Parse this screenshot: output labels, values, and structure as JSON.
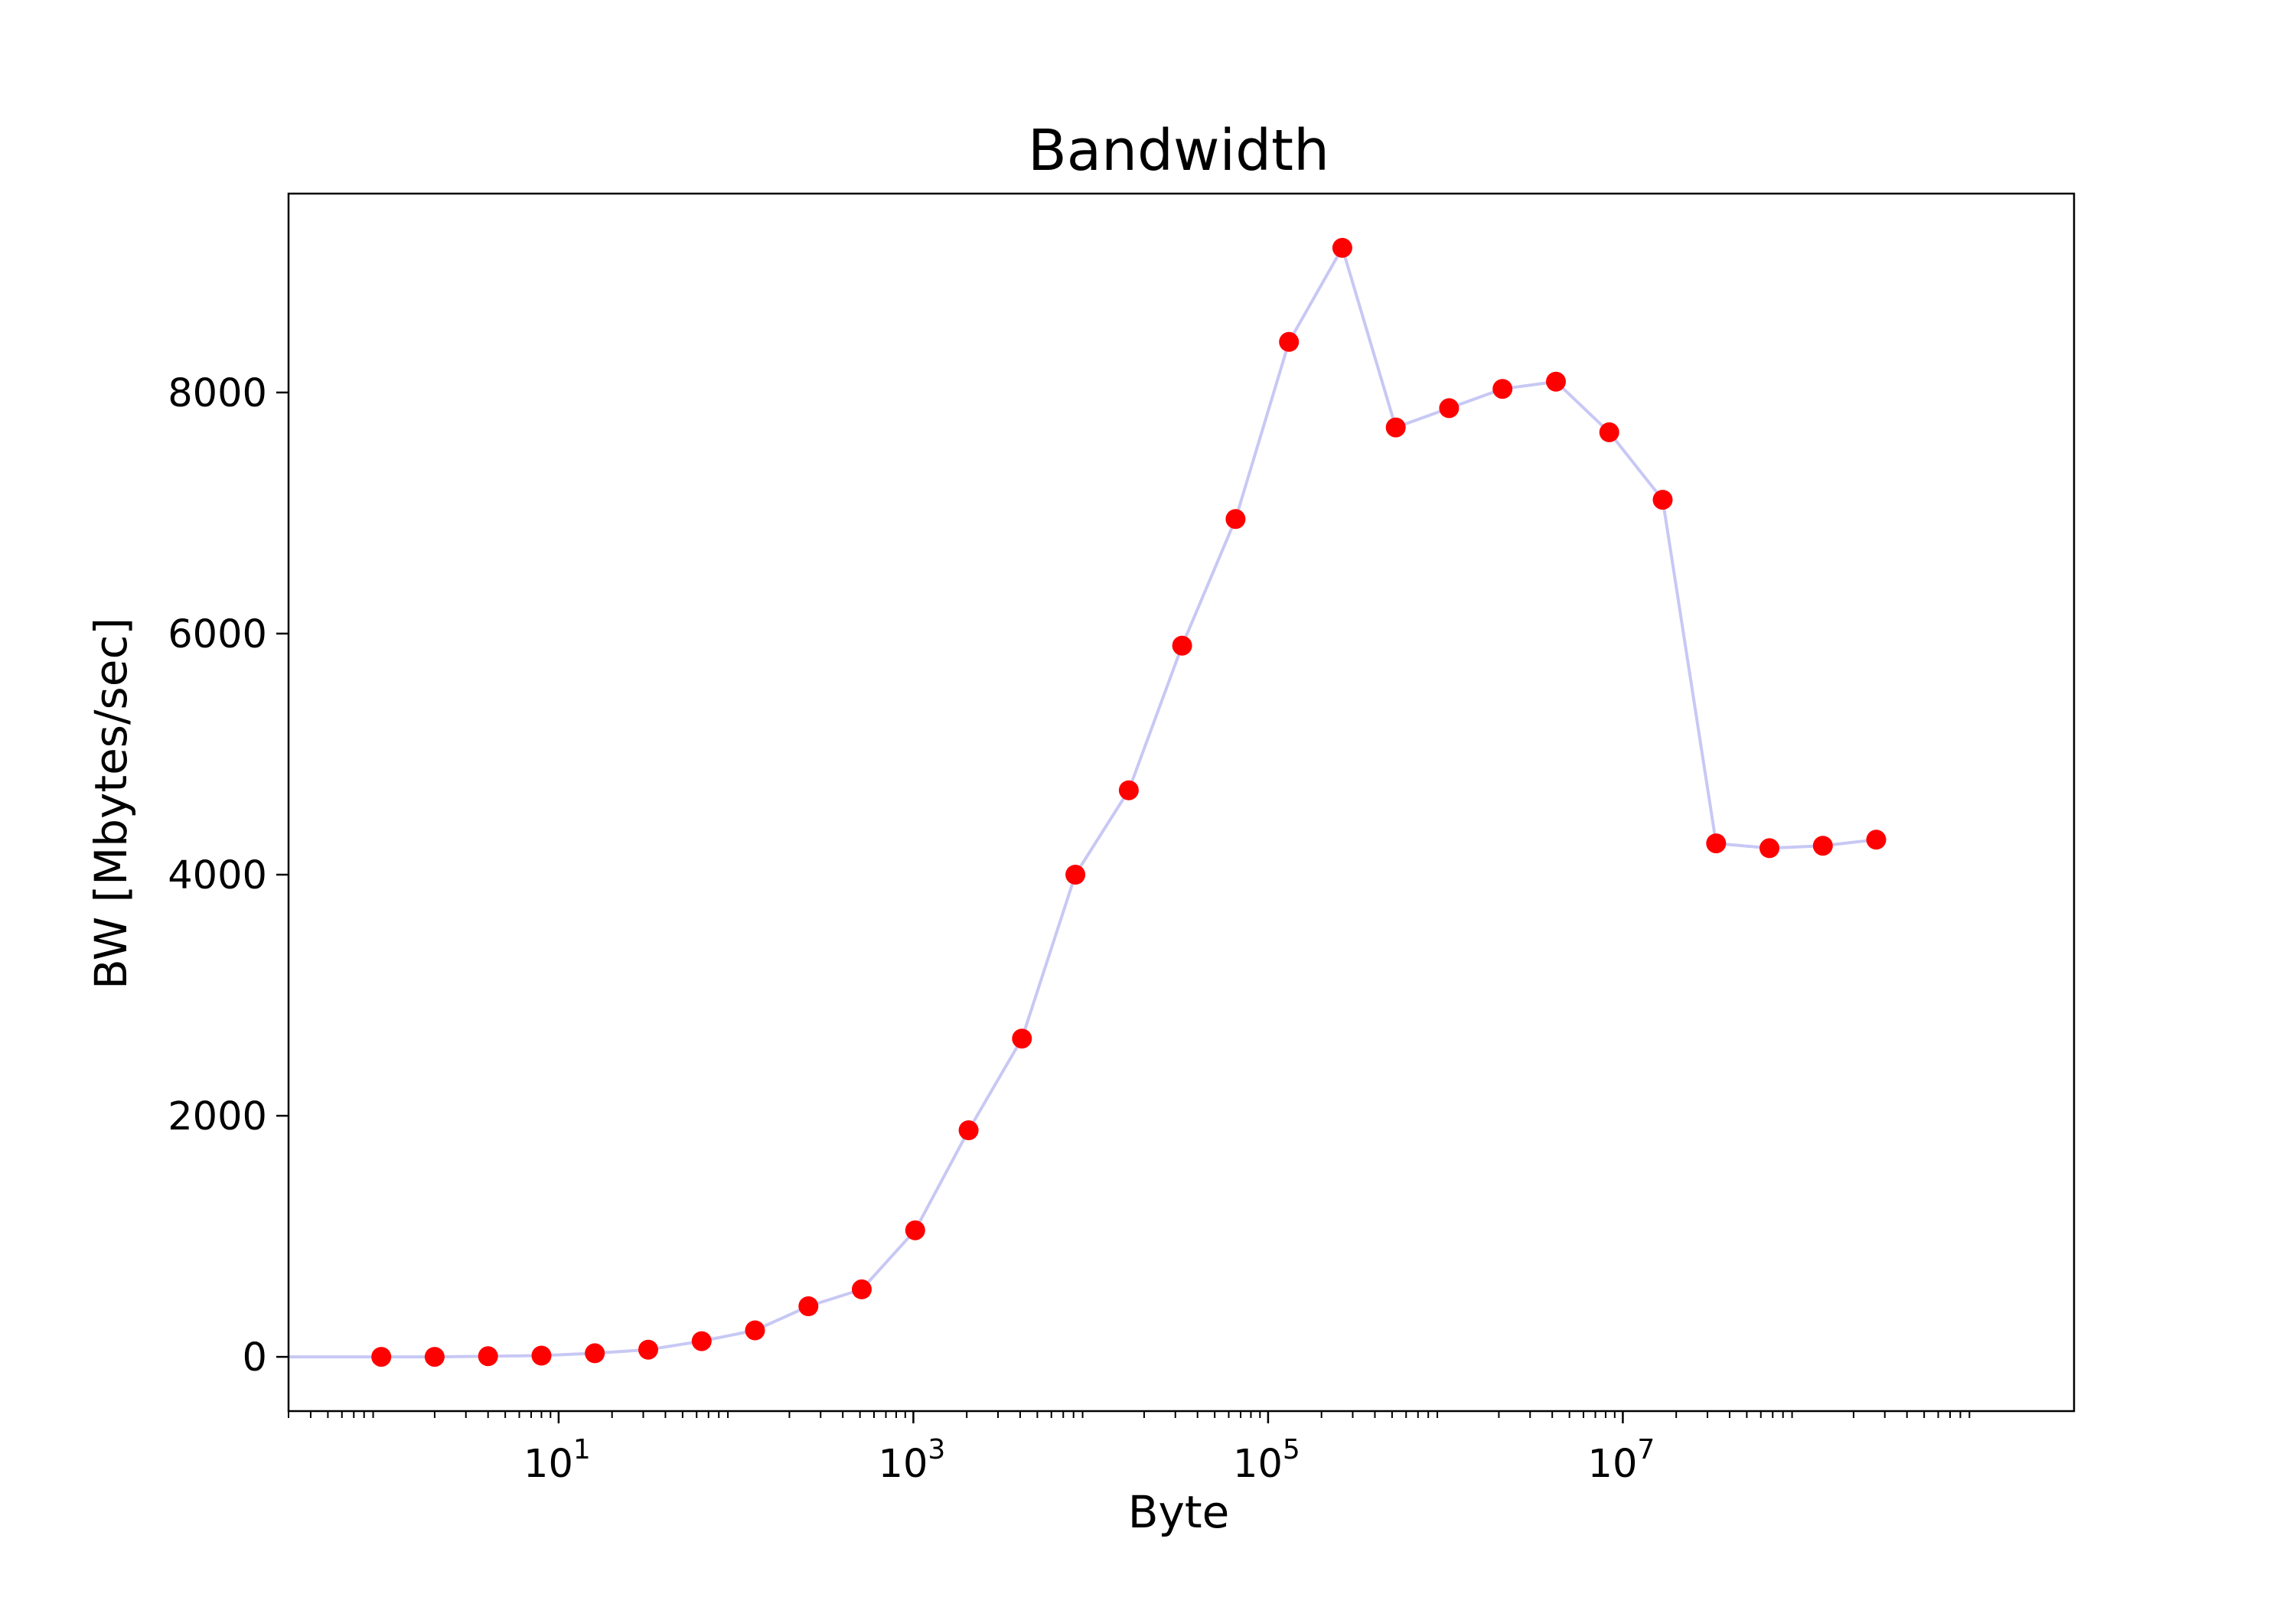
{
  "chart_data": {
    "type": "line",
    "title": "Bandwidth",
    "xlabel": "Byte",
    "ylabel": "BW [Mbytes/sec]",
    "xscale": "log",
    "xlim": [
      0.3,
      3500000000
    ],
    "ylim": [
      -450,
      9650
    ],
    "x_ticks": [
      {
        "value": 10,
        "base": "10",
        "exp": "1"
      },
      {
        "value": 1000,
        "base": "10",
        "exp": "3"
      },
      {
        "value": 100000,
        "base": "10",
        "exp": "5"
      },
      {
        "value": 10000000,
        "base": "10",
        "exp": "7"
      }
    ],
    "y_ticks": [
      0,
      2000,
      4000,
      6000,
      8000
    ],
    "grid": false,
    "line_color": "#c8c8f5",
    "marker_color": "#ff0000",
    "series": [
      {
        "x": [
          0,
          1,
          2,
          4,
          8,
          16,
          32,
          64,
          128,
          256,
          512,
          1024,
          2048,
          4096,
          8192,
          16384,
          32768,
          65536,
          131072,
          262144,
          524288,
          1048576,
          2097152,
          4194304,
          8388608,
          16777216,
          33554432,
          67108864,
          134217728,
          268435456
        ],
        "y": [
          0,
          0,
          0,
          5,
          10,
          30,
          60,
          130,
          220,
          420,
          560,
          1050,
          1880,
          2640,
          4000,
          4700,
          5900,
          6950,
          8420,
          9200,
          7710,
          7870,
          8030,
          8090,
          7670,
          7110,
          4260,
          4220,
          4240,
          4290
        ],
        "markers_from_index": 1
      }
    ]
  }
}
